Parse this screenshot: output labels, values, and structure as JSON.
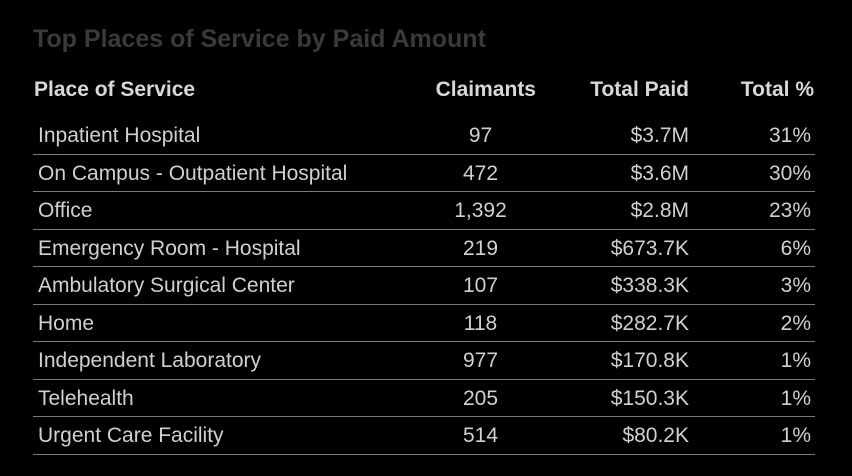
{
  "table": {
    "title": "Top Places of Service by Paid Amount",
    "columns": {
      "place": "Place of Service",
      "claimants": "Claimants",
      "total_paid": "Total Paid",
      "total_pct": "Total %"
    },
    "rows": [
      {
        "place": "Inpatient Hospital",
        "claimants": "97",
        "total_paid": "$3.7M",
        "total_pct": "31%"
      },
      {
        "place": "On Campus - Outpatient Hospital",
        "claimants": "472",
        "total_paid": "$3.6M",
        "total_pct": "30%"
      },
      {
        "place": "Office",
        "claimants": "1,392",
        "total_paid": "$2.8M",
        "total_pct": "23%"
      },
      {
        "place": "Emergency Room - Hospital",
        "claimants": "219",
        "total_paid": "$673.7K",
        "total_pct": "6%"
      },
      {
        "place": "Ambulatory Surgical Center",
        "claimants": "107",
        "total_paid": "$338.3K",
        "total_pct": "3%"
      },
      {
        "place": "Home",
        "claimants": "118",
        "total_paid": "$282.7K",
        "total_pct": "2%"
      },
      {
        "place": "Independent Laboratory",
        "claimants": "977",
        "total_paid": "$170.8K",
        "total_pct": "1%"
      },
      {
        "place": "Telehealth",
        "claimants": "205",
        "total_paid": "$150.3K",
        "total_pct": "1%"
      },
      {
        "place": "Urgent Care Facility",
        "claimants": "514",
        "total_paid": "$80.2K",
        "total_pct": "1%"
      }
    ]
  }
}
